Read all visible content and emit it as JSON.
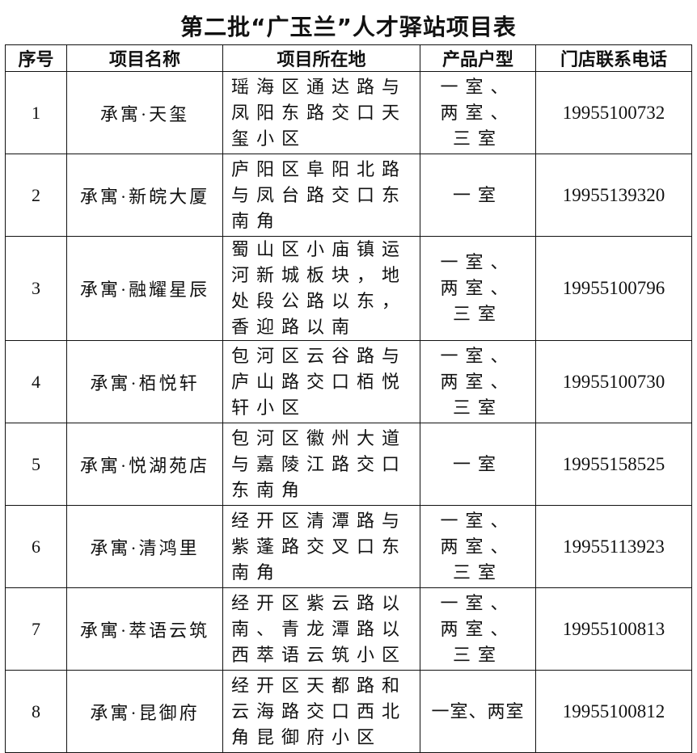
{
  "title": "第二批“广玉兰”人才驿站项目表",
  "headers": [
    "序号",
    "项目名称",
    "项目所在地",
    "产品户型",
    "门店联系电话"
  ],
  "rows": [
    {
      "no": "1",
      "name": "承寓·天玺",
      "address": "瑶海区通达路与凤阳东路交口天玺小区",
      "type": "一室、两室、三室",
      "phone": "19955100732"
    },
    {
      "no": "2",
      "name": "承寓·新皖大厦",
      "address": "庐阳区阜阳北路与凤台路交口东南角",
      "type": "一室",
      "phone": "19955139320"
    },
    {
      "no": "3",
      "name": "承寓·融耀星辰",
      "address": "蜀山区小庙镇运河新城板块，地处段公路以东，香迎路以南",
      "type": "一室、两室、三室",
      "phone": "19955100796"
    },
    {
      "no": "4",
      "name": "承寓·栢悦轩",
      "address": "包河区云谷路与庐山路交口栢悦轩小区",
      "type": "一室、两室、三室",
      "phone": "19955100730"
    },
    {
      "no": "5",
      "name": "承寓·悦湖苑店",
      "address": "包河区徽州大道与嘉陵江路交口东南角",
      "type": "一室",
      "phone": "19955158525"
    },
    {
      "no": "6",
      "name": "承寓·清鸿里",
      "address": "经开区清潭路与紫蓬路交叉口东南角",
      "type": "一室、两室、三室",
      "phone": "19955113923"
    },
    {
      "no": "7",
      "name": "承寓·萃语云筑",
      "address": "经开区紫云路以南、青龙潭路以西萃语云筑小区",
      "type": "一室、两室、三室",
      "phone": "19955100813"
    },
    {
      "no": "8",
      "name": "承寓·昆御府",
      "address": "经开区天都路和云海路交口西北角昆御府小区",
      "type": "一室、两室",
      "phone": "19955100812"
    }
  ]
}
